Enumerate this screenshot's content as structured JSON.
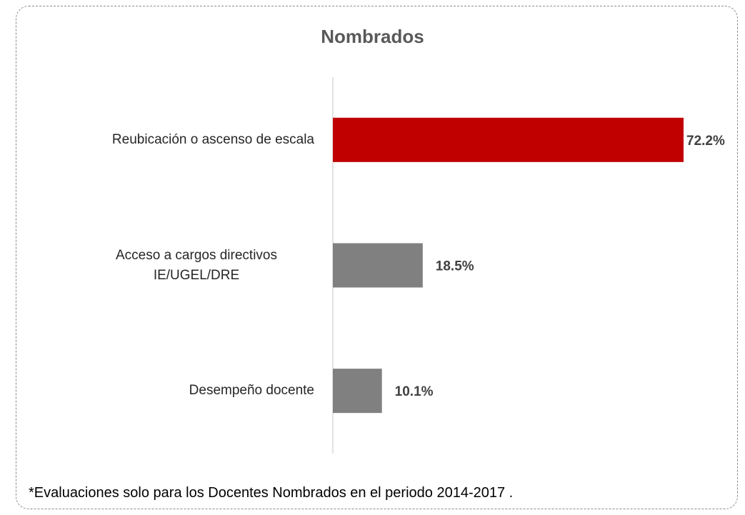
{
  "chart_data": {
    "type": "bar",
    "orientation": "horizontal",
    "title": "Nombrados",
    "categories": [
      "Reubicación o ascenso de escala",
      "Acceso a cargos directivos IE/UGEL/DRE",
      "Desempeño docente"
    ],
    "values": [
      72.2,
      18.5,
      10.1
    ],
    "value_labels": [
      "72.2%",
      "18.5%",
      "10.1%"
    ],
    "colors": [
      "#c00000",
      "#808080",
      "#808080"
    ],
    "note": "*Evaluaciones solo para los Docentes Nombrados en el periodo 2014-2017 ."
  }
}
